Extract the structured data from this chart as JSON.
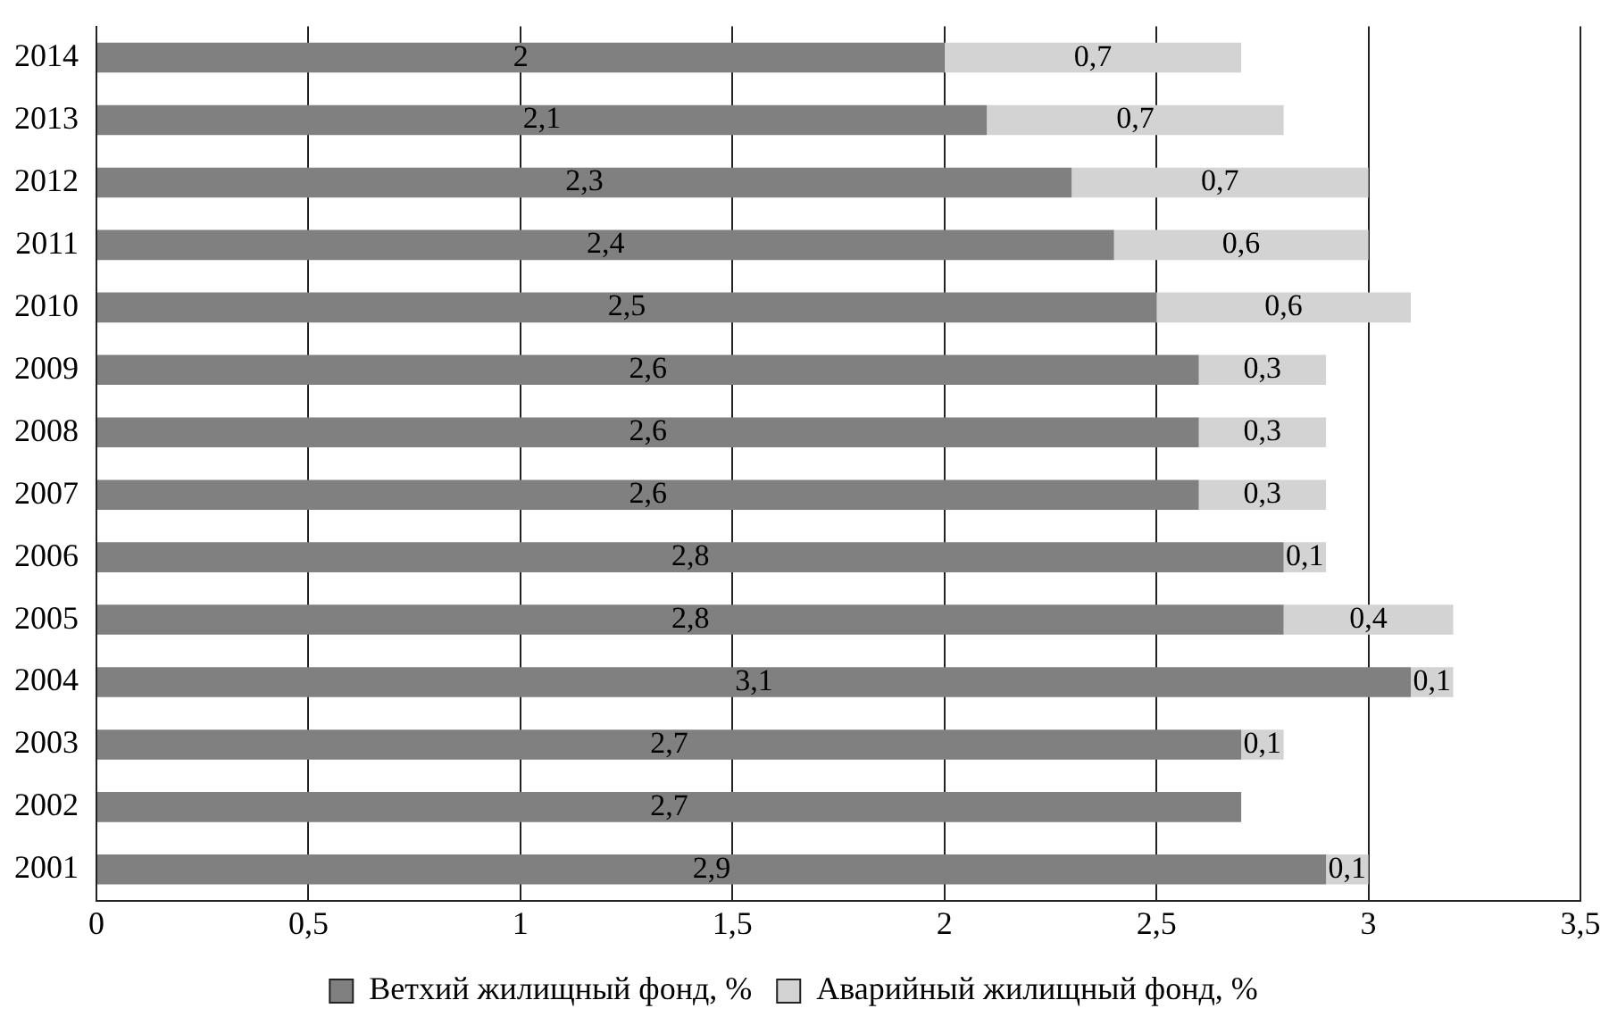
{
  "chart_data": {
    "type": "bar",
    "orientation": "horizontal",
    "stacked": true,
    "categories": [
      "2014",
      "2013",
      "2012",
      "2011",
      "2010",
      "2009",
      "2008",
      "2007",
      "2006",
      "2005",
      "2004",
      "2003",
      "2002",
      "2001"
    ],
    "series": [
      {
        "name": "Ветхий жилищный фонд, %",
        "color": "#808080",
        "values": [
          2,
          2.1,
          2.3,
          2.4,
          2.5,
          2.6,
          2.6,
          2.6,
          2.8,
          2.8,
          3.1,
          2.7,
          2.7,
          2.9
        ],
        "value_labels": [
          "2",
          "2,1",
          "2,3",
          "2,4",
          "2,5",
          "2,6",
          "2,6",
          "2,6",
          "2,8",
          "2,8",
          "3,1",
          "2,7",
          "2,7",
          "2,9"
        ]
      },
      {
        "name": "Аварийный жилищный фонд, %",
        "color": "#d3d3d3",
        "values": [
          0.7,
          0.7,
          0.7,
          0.6,
          0.6,
          0.3,
          0.3,
          0.3,
          0.1,
          0.4,
          0.1,
          0.1,
          null,
          0.1
        ],
        "value_labels": [
          "0,7",
          "0,7",
          "0,7",
          "0,6",
          "0,6",
          "0,3",
          "0,3",
          "0,3",
          "0,1",
          "0,4",
          "0,1",
          "0,1",
          null,
          "0,1"
        ]
      }
    ],
    "xlim": [
      0,
      3.5
    ],
    "xticks": [
      0,
      {
        "value": 0.5,
        "label": "0,5"
      },
      1,
      {
        "value": 1.5,
        "label": "1,5"
      },
      2,
      {
        "value": 2.5,
        "label": "2,5"
      },
      3,
      {
        "value": 3.5,
        "label": "3,5"
      }
    ],
    "grid": "x",
    "legend": "bottom"
  }
}
